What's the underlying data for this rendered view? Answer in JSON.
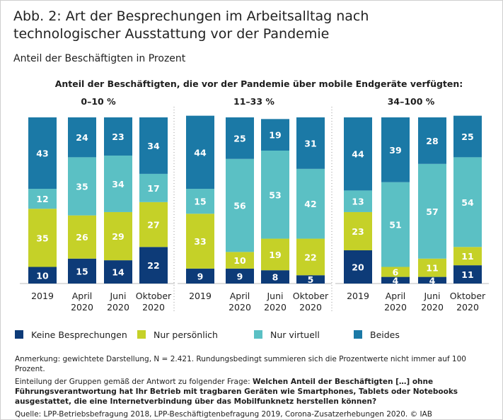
{
  "chart_data": {
    "type": "bar",
    "stacked": true,
    "title": "Abb. 2: Art der Besprechungen im Arbeitsalltag nach technologischer Ausstattung vor der Pandemie",
    "subtitle": "Anteil der Beschäftigten in Prozent",
    "group_title": "Anteil der Beschäftigten, die vor der Pandemie über mobile Endgeräte verfügten:",
    "panels": [
      "0–10 %",
      "11–33 %",
      "34–100 %"
    ],
    "categories": [
      "2019",
      "April 2020",
      "Juni 2020",
      "Oktober 2020"
    ],
    "ylim": [
      0,
      100
    ],
    "series": [
      {
        "name": "Keine Besprechungen",
        "color": "#0d3b78",
        "values": [
          [
            10,
            15,
            14,
            22
          ],
          [
            9,
            9,
            8,
            5
          ],
          [
            20,
            4,
            4,
            11
          ]
        ]
      },
      {
        "name": "Nur persönlich",
        "color": "#c5d128",
        "values": [
          [
            35,
            26,
            29,
            27
          ],
          [
            33,
            10,
            19,
            22
          ],
          [
            23,
            6,
            11,
            11
          ]
        ]
      },
      {
        "name": "Nur virtuell",
        "color": "#5bc0c4",
        "values": [
          [
            12,
            35,
            34,
            17
          ],
          [
            15,
            56,
            53,
            42
          ],
          [
            13,
            51,
            57,
            54
          ]
        ]
      },
      {
        "name": "Beides",
        "color": "#1b79a6",
        "values": [
          [
            43,
            24,
            23,
            34
          ],
          [
            44,
            25,
            19,
            31
          ],
          [
            44,
            39,
            28,
            25
          ]
        ]
      }
    ],
    "notes": {
      "weighting": "Anmerkung: gewichtete Darstellung, N = 2.421. Rundungsbedingt summieren sich die Prozentwerte nicht immer auf 100 Prozent.",
      "grouping": "Einteilung der Gruppen gemäß der Antwort zu folgender Frage:",
      "question": "Welchen Anteil der Beschäftigten […] ohne Führungsverantwortung hat Ihr Betrieb mit tragbaren Geräten wie Smartphones, Tablets oder Notebooks ausgestattet, die eine Internetverbindung über das Mobilfunknetz herstellen können?",
      "source": "Quelle: LPP-Betriebsbefragung 2018, LPP-Beschäftigtenbefragung 2019, Corona-Zusatzerhebungen 2020. © IAB"
    }
  }
}
